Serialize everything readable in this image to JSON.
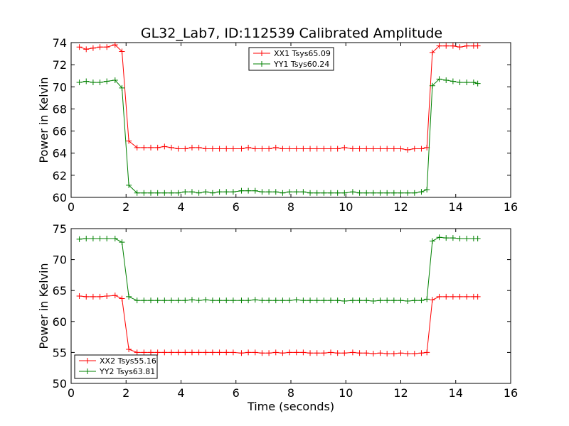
{
  "figure": {
    "title": "GL32_Lab7, ID:112539 Calibrated Amplitude",
    "background": "#ffffff"
  },
  "chart_data": [
    {
      "type": "line",
      "title": "GL32_Lab7, ID:112539 Calibrated Amplitude",
      "xlabel": "",
      "ylabel": "Power in Kelvin",
      "xlim": [
        0,
        16
      ],
      "ylim": [
        60,
        74
      ],
      "xticks": [
        "0",
        "2",
        "4",
        "6",
        "8",
        "10",
        "12",
        "14",
        "16"
      ],
      "yticks": [
        "60",
        "62",
        "64",
        "66",
        "68",
        "70",
        "72",
        "74"
      ],
      "grid": false,
      "legend_position": "top-center",
      "marker": "+",
      "x": [
        0.3,
        0.55,
        0.8,
        1.05,
        1.3,
        1.6,
        1.85,
        2.1,
        2.4,
        2.65,
        2.9,
        3.15,
        3.4,
        3.65,
        3.9,
        4.15,
        4.4,
        4.65,
        4.9,
        5.15,
        5.4,
        5.65,
        5.9,
        6.2,
        6.45,
        6.7,
        6.95,
        7.2,
        7.45,
        7.7,
        7.95,
        8.2,
        8.45,
        8.7,
        8.95,
        9.2,
        9.45,
        9.7,
        9.95,
        10.25,
        10.5,
        10.75,
        11.0,
        11.25,
        11.5,
        11.75,
        12.0,
        12.25,
        12.5,
        12.75,
        12.95,
        13.15,
        13.4,
        13.65,
        13.9,
        14.15,
        14.4,
        14.65,
        14.8
      ],
      "series": [
        {
          "name": "XX1 Tsys65.09",
          "color": "#ff0000",
          "values": [
            73.6,
            73.4,
            73.5,
            73.6,
            73.6,
            73.8,
            73.2,
            65.1,
            64.5,
            64.5,
            64.5,
            64.5,
            64.6,
            64.5,
            64.4,
            64.4,
            64.5,
            64.5,
            64.4,
            64.4,
            64.4,
            64.4,
            64.4,
            64.4,
            64.5,
            64.4,
            64.4,
            64.4,
            64.5,
            64.4,
            64.4,
            64.4,
            64.4,
            64.4,
            64.4,
            64.4,
            64.4,
            64.4,
            64.5,
            64.4,
            64.4,
            64.4,
            64.4,
            64.4,
            64.4,
            64.4,
            64.4,
            64.3,
            64.4,
            64.4,
            64.5,
            73.1,
            73.7,
            73.7,
            73.7,
            73.6,
            73.7,
            73.7,
            73.7
          ]
        },
        {
          "name": "YY1 Tsys60.24",
          "color": "#008000",
          "values": [
            70.4,
            70.5,
            70.4,
            70.4,
            70.5,
            70.6,
            69.9,
            61.1,
            60.4,
            60.4,
            60.4,
            60.4,
            60.4,
            60.4,
            60.4,
            60.5,
            60.5,
            60.4,
            60.5,
            60.4,
            60.5,
            60.5,
            60.5,
            60.6,
            60.6,
            60.6,
            60.5,
            60.5,
            60.5,
            60.4,
            60.5,
            60.5,
            60.5,
            60.4,
            60.4,
            60.4,
            60.4,
            60.4,
            60.4,
            60.5,
            60.4,
            60.4,
            60.4,
            60.4,
            60.4,
            60.4,
            60.4,
            60.4,
            60.4,
            60.5,
            60.7,
            70.1,
            70.7,
            70.6,
            70.5,
            70.4,
            70.4,
            70.4,
            70.3
          ]
        }
      ]
    },
    {
      "type": "line",
      "title": "",
      "xlabel": "Time (seconds)",
      "ylabel": "Power in Kelvin",
      "xlim": [
        0,
        16
      ],
      "ylim": [
        50,
        75
      ],
      "xticks": [
        "0",
        "2",
        "4",
        "6",
        "8",
        "10",
        "12",
        "14",
        "16"
      ],
      "yticks": [
        "50",
        "55",
        "60",
        "65",
        "70",
        "75"
      ],
      "grid": false,
      "legend_position": "bottom-left",
      "marker": "+",
      "x": [
        0.3,
        0.55,
        0.8,
        1.05,
        1.3,
        1.6,
        1.85,
        2.1,
        2.4,
        2.65,
        2.9,
        3.15,
        3.4,
        3.65,
        3.9,
        4.15,
        4.4,
        4.65,
        4.9,
        5.15,
        5.4,
        5.65,
        5.9,
        6.2,
        6.45,
        6.7,
        6.95,
        7.2,
        7.45,
        7.7,
        7.95,
        8.2,
        8.45,
        8.7,
        8.95,
        9.2,
        9.45,
        9.7,
        9.95,
        10.25,
        10.5,
        10.75,
        11.0,
        11.25,
        11.5,
        11.75,
        12.0,
        12.25,
        12.5,
        12.75,
        12.95,
        13.15,
        13.4,
        13.65,
        13.9,
        14.15,
        14.4,
        14.65,
        14.8
      ],
      "series": [
        {
          "name": "XX2 Tsys55.16",
          "color": "#ff0000",
          "values": [
            64.1,
            64.0,
            64.0,
            64.0,
            64.1,
            64.2,
            63.7,
            55.5,
            55.0,
            55.0,
            55.0,
            55.0,
            55.0,
            55.0,
            55.0,
            55.0,
            55.0,
            55.0,
            55.0,
            55.0,
            55.0,
            55.0,
            55.0,
            54.9,
            55.0,
            55.0,
            54.9,
            54.9,
            55.0,
            54.9,
            55.0,
            55.0,
            55.0,
            54.9,
            54.9,
            54.9,
            55.0,
            54.9,
            54.9,
            55.0,
            54.9,
            54.9,
            54.8,
            54.9,
            54.8,
            54.8,
            54.9,
            54.8,
            54.8,
            54.9,
            55.0,
            63.5,
            64.0,
            64.0,
            64.0,
            64.0,
            64.0,
            64.0,
            64.0
          ]
        },
        {
          "name": "YY2 Tsys63.81",
          "color": "#008000",
          "values": [
            73.3,
            73.4,
            73.4,
            73.4,
            73.4,
            73.4,
            72.8,
            64.0,
            63.4,
            63.4,
            63.4,
            63.4,
            63.4,
            63.4,
            63.4,
            63.4,
            63.5,
            63.4,
            63.5,
            63.4,
            63.4,
            63.4,
            63.4,
            63.4,
            63.4,
            63.5,
            63.4,
            63.4,
            63.4,
            63.4,
            63.4,
            63.5,
            63.4,
            63.4,
            63.4,
            63.4,
            63.4,
            63.4,
            63.3,
            63.4,
            63.4,
            63.4,
            63.3,
            63.4,
            63.4,
            63.4,
            63.4,
            63.3,
            63.4,
            63.4,
            63.6,
            73.0,
            73.6,
            73.5,
            73.5,
            73.4,
            73.4,
            73.4,
            73.4
          ]
        }
      ]
    }
  ]
}
